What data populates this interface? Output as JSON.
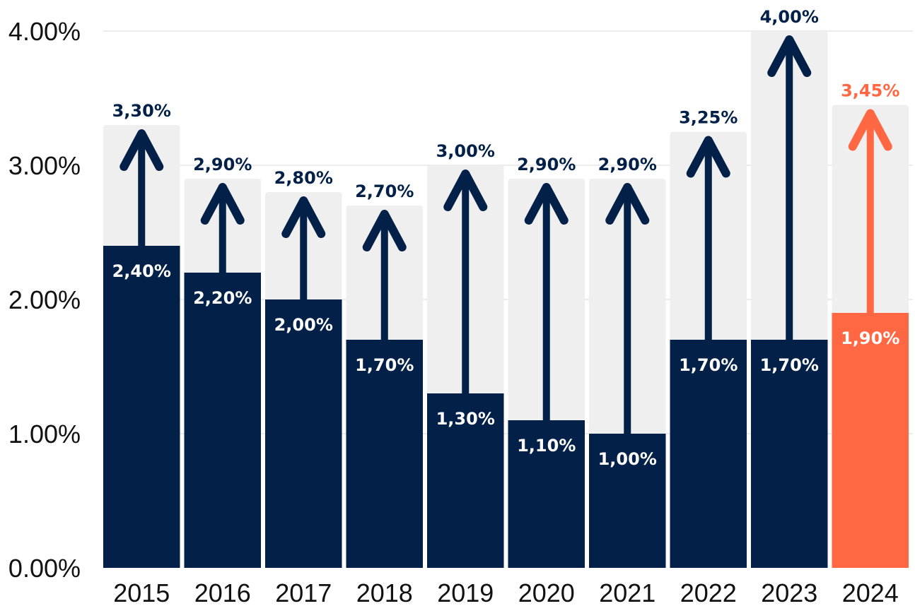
{
  "chart_data": {
    "type": "bar",
    "categories": [
      "2015",
      "2016",
      "2017",
      "2018",
      "2019",
      "2020",
      "2021",
      "2022",
      "2023",
      "2024"
    ],
    "series": [
      {
        "values": [
          2.4,
          2.2,
          2.0,
          1.7,
          1.3,
          1.1,
          1.0,
          1.7,
          1.7,
          1.9
        ],
        "labels": [
          "2,40%",
          "2,20%",
          "2,00%",
          "1,70%",
          "1,30%",
          "1,10%",
          "1,00%",
          "1,70%",
          "1,70%",
          "1,90%"
        ]
      },
      {
        "values": [
          3.3,
          2.9,
          2.8,
          2.7,
          3.0,
          2.9,
          2.9,
          3.25,
          4.0,
          3.45
        ],
        "labels": [
          "3,30%",
          "2,90%",
          "2,80%",
          "2,70%",
          "3,00%",
          "2,90%",
          "2,90%",
          "3,25%",
          "4,00%",
          "3,45%"
        ]
      }
    ],
    "ylim": [
      0,
      4
    ],
    "yticks": [
      "0.00%",
      "1.00%",
      "2.00%",
      "3.00%",
      "4.00%"
    ],
    "grid": true,
    "highlight_index": 9,
    "colors": {
      "main": "#022048",
      "highlight": "#ff6843",
      "background_bar": "#efefef",
      "grid": "#d9d9d9"
    }
  }
}
